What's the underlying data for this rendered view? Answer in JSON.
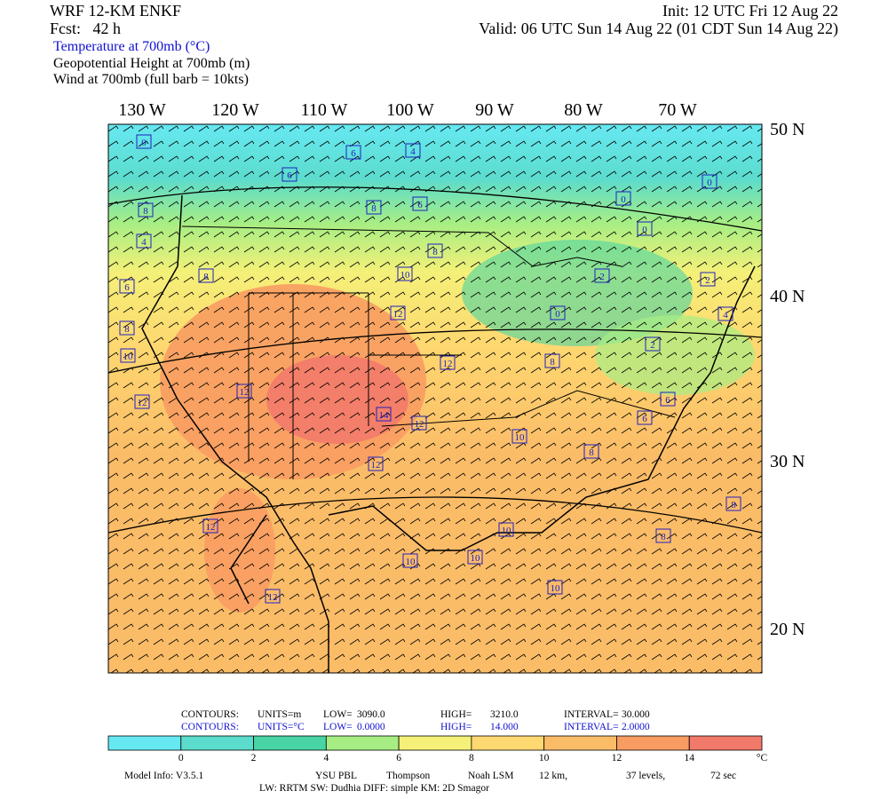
{
  "header": {
    "model": "WRF 12-KM ENKF",
    "forecast": "Fcst:   42 h",
    "init": "Init: 12 UTC Fri 12 Aug 22",
    "valid": "Valid: 06 UTC Sun 14 Aug 22 (01 CDT Sun 14 Aug 22)",
    "fields": [
      "Temperature at 700mb (°C)",
      "Geopotential Height at 700mb (m)",
      "Wind at 700mb (full barb = 10kts)"
    ]
  },
  "map": {
    "lon_labels": [
      "130 W",
      "120 W",
      "110 W",
      "100 W",
      "90 W",
      "80 W",
      "70 W"
    ],
    "lat_labels": [
      "50 N",
      "40 N",
      "30 N",
      "20 N"
    ],
    "contour_labels": [
      0,
      6,
      4,
      6,
      8,
      8,
      6,
      0,
      0,
      0,
      4,
      8,
      8,
      6,
      10,
      2,
      2,
      8,
      12,
      0,
      4,
      10,
      12,
      8,
      2,
      12,
      12,
      14,
      12,
      6,
      6,
      10,
      8,
      12,
      8,
      12,
      10,
      8,
      10,
      10,
      10,
      12
    ]
  },
  "contour_info": {
    "height": [
      "CONTOURS:",
      "UNITS=m",
      "LOW=",
      "3090.0",
      "HIGH=",
      "3210.0",
      "INTERVAL=",
      "30.000"
    ],
    "temperature": [
      "CONTOURS:",
      "UNITS=°C",
      "LOW=",
      "0.0000",
      "HIGH=",
      "14.000",
      "INTERVAL=",
      "2.0000"
    ]
  },
  "colorbar": {
    "ticks": [
      0,
      2,
      4,
      6,
      8,
      10,
      12,
      14
    ],
    "unit": "°C",
    "colors": [
      "#66e8f2",
      "#5cdccc",
      "#48d4a4",
      "#a6ee84",
      "#f4f078",
      "#fed870",
      "#fbbc68",
      "#f89c62",
      "#f27a6a"
    ]
  },
  "model_info": {
    "line1": [
      "Model Info: V3.5.1",
      "YSU PBL",
      "Thompson",
      "Noah LSM",
      "12 km,",
      "37 levels,",
      "72 sec"
    ],
    "line2": "LW: RRTM SW: Dudhia  DIFF: simple  KM: 2D Smagor"
  }
}
